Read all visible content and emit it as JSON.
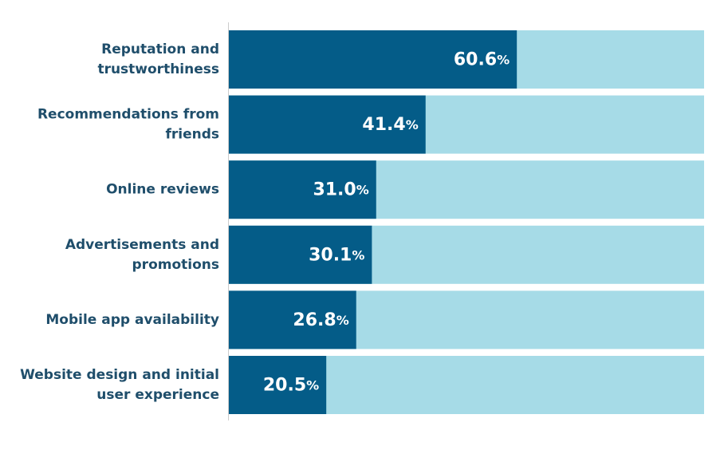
{
  "chart_data": {
    "type": "bar",
    "orientation": "horizontal",
    "categories": [
      [
        "Reputation and",
        "trustworthiness"
      ],
      [
        "Recommendations from",
        "friends"
      ],
      [
        "Online reviews"
      ],
      [
        "Advertisements and",
        "promotions"
      ],
      [
        "Mobile app availability"
      ],
      [
        "Website design and initial",
        "user experience"
      ]
    ],
    "values": [
      60.6,
      41.4,
      31.0,
      30.1,
      26.8,
      20.5
    ],
    "value_labels": [
      "60.6",
      "41.4",
      "31.0",
      "30.1",
      "26.8",
      "20.5"
    ],
    "value_suffix": "%",
    "xlim": [
      0,
      100
    ],
    "colors": {
      "bar": "#045c88",
      "track": "#a6dbe7",
      "axis": "#cccccc",
      "label": "#1f4e6b"
    },
    "grid": false,
    "legend": "none"
  }
}
